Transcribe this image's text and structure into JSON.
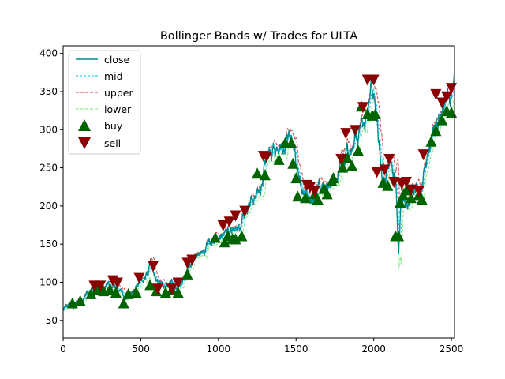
{
  "chart_data": {
    "type": "line",
    "title": "Bollinger Bands w/ Trades for ULTA",
    "xlabel": "",
    "ylabel": "",
    "xlim": [
      0,
      2520
    ],
    "ylim": [
      27,
      410
    ],
    "xticks": [
      0,
      500,
      1000,
      1500,
      2000,
      2500
    ],
    "yticks": [
      50,
      100,
      150,
      200,
      250,
      300,
      350,
      400
    ],
    "grid": false,
    "legend_position": "top-left",
    "colors": {
      "close": "#008b8b",
      "mid": "#00bfff",
      "upper": "#cd5c5c",
      "lower": "#90ee90",
      "buy": "#006400",
      "sell": "#8b0000"
    },
    "close_anchors": {
      "x": [
        0,
        50,
        100,
        150,
        200,
        250,
        300,
        350,
        400,
        450,
        500,
        540,
        570,
        600,
        650,
        700,
        750,
        800,
        850,
        900,
        950,
        1000,
        1050,
        1100,
        1150,
        1200,
        1250,
        1300,
        1350,
        1400,
        1450,
        1480,
        1500,
        1550,
        1600,
        1650,
        1700,
        1750,
        1800,
        1850,
        1900,
        1950,
        1980,
        2000,
        2030,
        2060,
        2100,
        2140,
        2160,
        2180,
        2220,
        2260,
        2300,
        2350,
        2400,
        2450,
        2490,
        2520
      ],
      "y": [
        65,
        70,
        72,
        82,
        88,
        90,
        95,
        92,
        82,
        88,
        100,
        110,
        125,
        100,
        95,
        100,
        95,
        115,
        130,
        140,
        152,
        158,
        165,
        172,
        180,
        195,
        220,
        255,
        262,
        270,
        295,
        290,
        250,
        215,
        210,
        225,
        220,
        230,
        265,
        275,
        290,
        320,
        345,
        355,
        300,
        240,
        255,
        235,
        140,
        215,
        200,
        225,
        215,
        270,
        310,
        330,
        345,
        370
      ]
    },
    "series": [
      {
        "name": "close"
      },
      {
        "name": "mid"
      },
      {
        "name": "upper"
      },
      {
        "name": "lower"
      },
      {
        "name": "buy",
        "x": [
          60,
          110,
          180,
          220,
          260,
          300,
          340,
          390,
          420,
          470,
          560,
          600,
          660,
          700,
          740,
          800,
          980,
          1040,
          1060,
          1090,
          1110,
          1150,
          1250,
          1300,
          1390,
          1430,
          1470,
          1480,
          1500,
          1510,
          1560,
          1620,
          1640,
          1680,
          1700,
          1730,
          1740,
          1800,
          1830,
          1860,
          1900,
          1920,
          1960,
          1990,
          2010,
          2060,
          2090,
          2140,
          2160,
          2170,
          2190,
          2210,
          2240,
          2290,
          2310,
          2370,
          2400,
          2440,
          2470,
          2500
        ],
        "y": [
          72,
          75,
          84,
          90,
          88,
          90,
          86,
          72,
          84,
          86,
          96,
          88,
          86,
          90,
          86,
          110,
          158,
          152,
          160,
          156,
          156,
          160,
          242,
          240,
          260,
          282,
          282,
          255,
          236,
          212,
          210,
          215,
          208,
          222,
          215,
          232,
          236,
          250,
          262,
          252,
          272,
          330,
          320,
          318,
          320,
          230,
          226,
          160,
          160,
          204,
          214,
          220,
          210,
          214,
          208,
          284,
          298,
          312,
          324,
          322
        ]
      },
      {
        "name": "sell",
        "x": [
          200,
          240,
          320,
          350,
          490,
          580,
          610,
          700,
          740,
          800,
          830,
          1030,
          1070,
          1110,
          1170,
          1290,
          1310,
          1570,
          1590,
          1620,
          1790,
          1820,
          1880,
          1930,
          1960,
          2000,
          2020,
          2070,
          2100,
          2130,
          2180,
          2210,
          2240,
          2290,
          2320,
          2400,
          2440,
          2470,
          2500
        ],
        "y": [
          96,
          96,
          103,
          100,
          106,
          122,
          92,
          92,
          100,
          126,
          130,
          175,
          180,
          188,
          194,
          266,
          265,
          228,
          225,
          220,
          262,
          296,
          300,
          330,
          366,
          366,
          245,
          248,
          262,
          232,
          230,
          232,
          222,
          220,
          268,
          347,
          336,
          344,
          355
        ]
      }
    ]
  }
}
